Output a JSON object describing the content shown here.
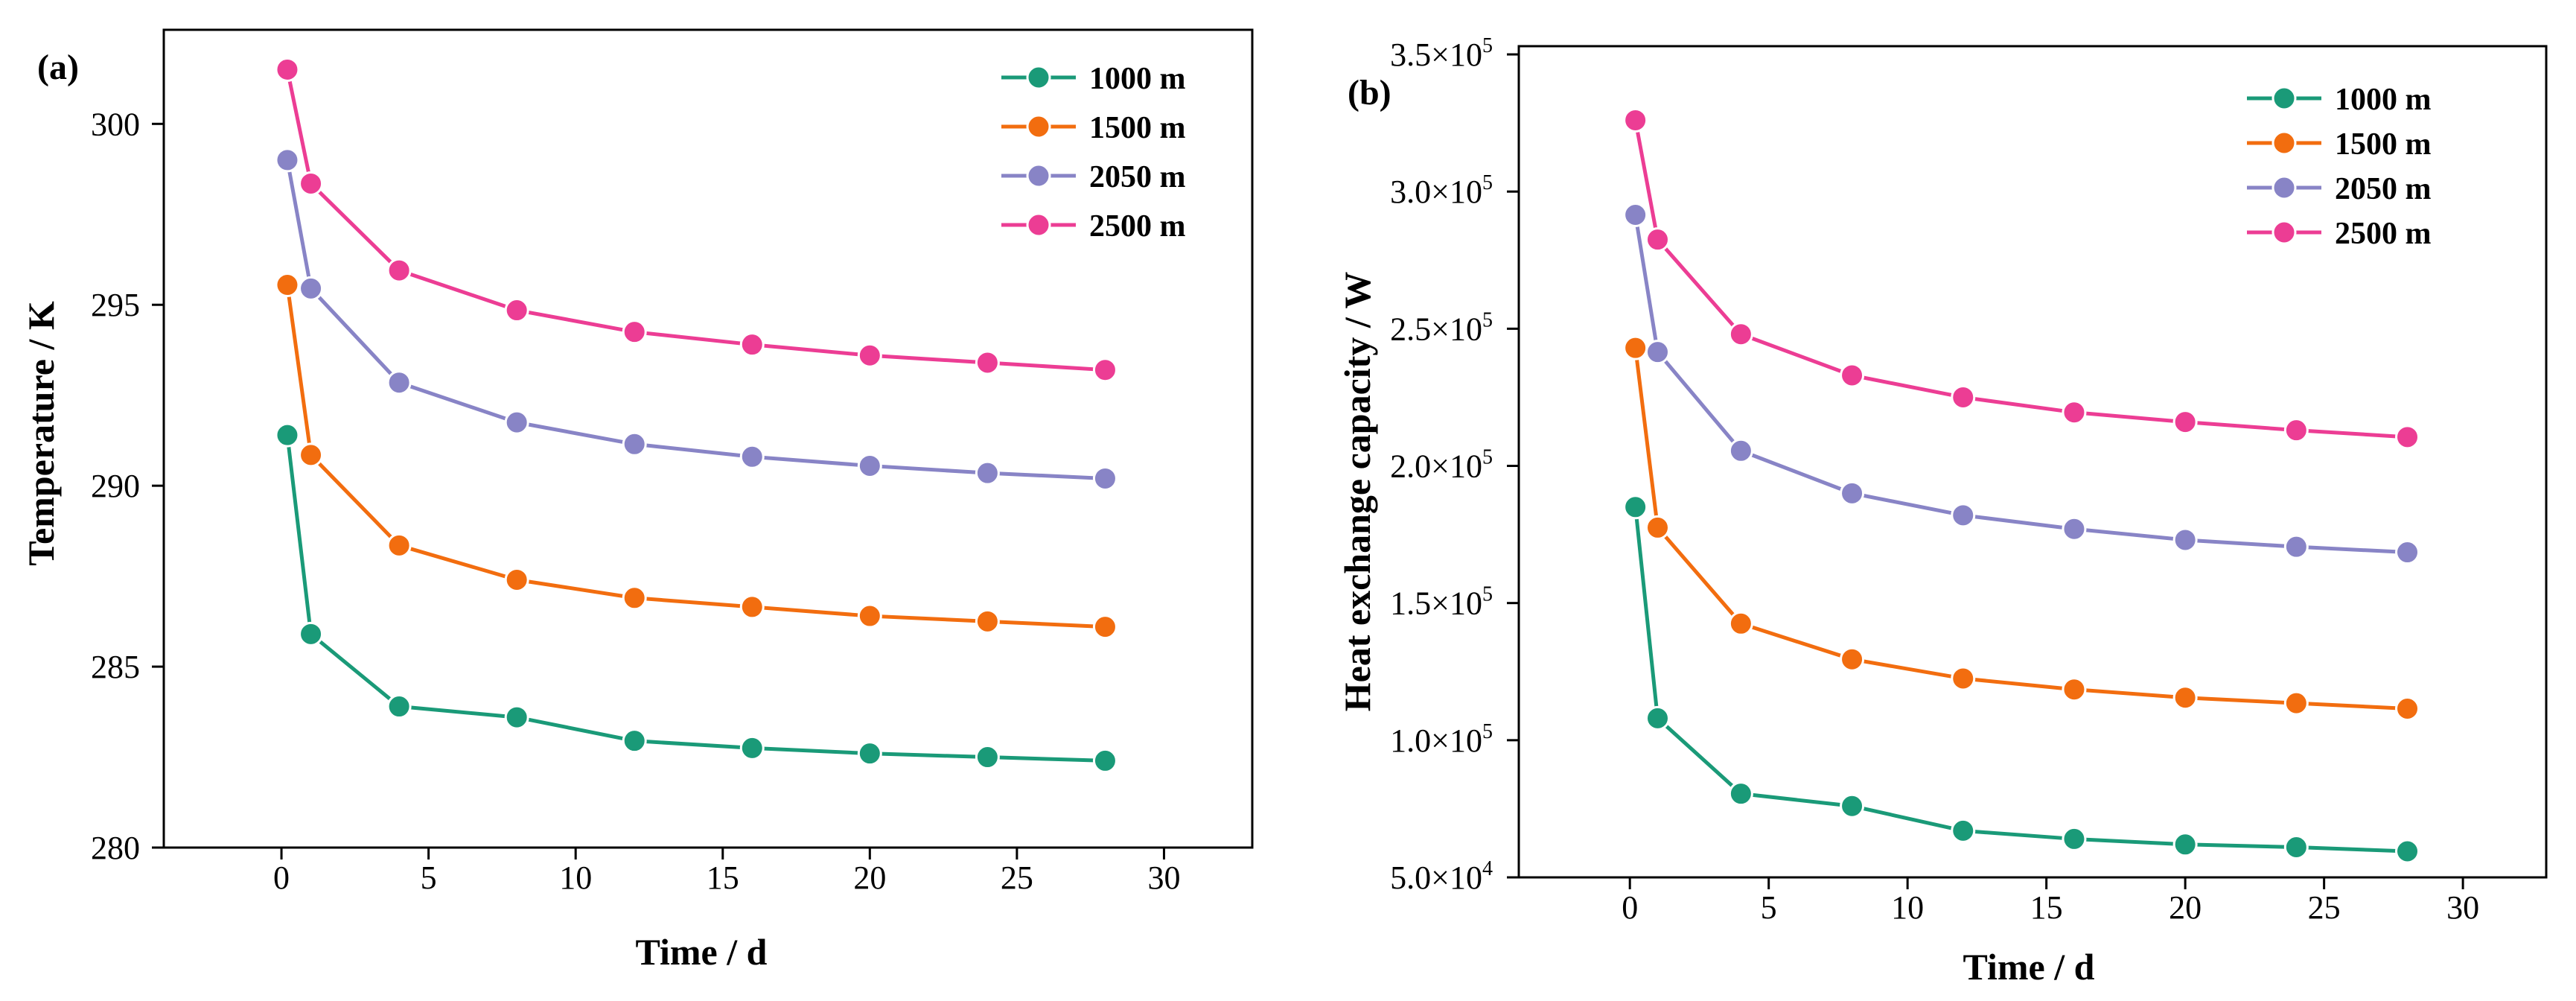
{
  "charts": [
    {
      "panel_label": "(a)",
      "x_title": "Time / d",
      "y_title": "Temperature / K",
      "x_ticks": [
        {
          "v": 0,
          "label": "0"
        },
        {
          "v": 5,
          "label": "5"
        },
        {
          "v": 10,
          "label": "10"
        },
        {
          "v": 15,
          "label": "15"
        },
        {
          "v": 20,
          "label": "20"
        },
        {
          "v": 25,
          "label": "25"
        },
        {
          "v": 30,
          "label": "30"
        }
      ],
      "y_ticks": [
        {
          "v": 280,
          "label": "280"
        },
        {
          "v": 285,
          "label": "285"
        },
        {
          "v": 290,
          "label": "290"
        },
        {
          "v": 295,
          "label": "295"
        },
        {
          "v": 300,
          "label": "300"
        }
      ]
    },
    {
      "panel_label": "(b)",
      "x_title": "Time / d",
      "y_title": "Heat exchange capacity / W",
      "x_ticks": [
        {
          "v": 0,
          "label": "0"
        },
        {
          "v": 5,
          "label": "5"
        },
        {
          "v": 10,
          "label": "10"
        },
        {
          "v": 15,
          "label": "15"
        },
        {
          "v": 20,
          "label": "20"
        },
        {
          "v": 25,
          "label": "25"
        },
        {
          "v": 30,
          "label": "30"
        }
      ],
      "y_ticks": [
        {
          "v": 50000,
          "mant": "5.0×10",
          "exp": "4"
        },
        {
          "v": 100000,
          "mant": "1.0×10",
          "exp": "5"
        },
        {
          "v": 150000,
          "mant": "1.5×10",
          "exp": "5"
        },
        {
          "v": 200000,
          "mant": "2.0×10",
          "exp": "5"
        },
        {
          "v": 250000,
          "mant": "2.5×10",
          "exp": "5"
        },
        {
          "v": 300000,
          "mant": "3.0×10",
          "exp": "5"
        },
        {
          "v": 350000,
          "mant": "3.5×10",
          "exp": "5"
        }
      ]
    }
  ],
  "chart_data": [
    {
      "type": "line",
      "title": "(a)",
      "xlabel": "Time / d",
      "ylabel": "Temperature / K",
      "xlim": [
        -4,
        33
      ],
      "ylim": [
        280,
        302.6
      ],
      "legend_position": "top-right",
      "x": [
        0.2,
        1,
        4,
        8,
        12,
        16,
        20,
        24,
        28
      ],
      "series": [
        {
          "name": "1000 m",
          "color": "#1a9a78",
          "values": [
            291.4,
            285.9,
            283.9,
            283.6,
            282.95,
            282.75,
            282.6,
            282.5,
            282.4
          ]
        },
        {
          "name": "1500 m",
          "color": "#f26d0f",
          "values": [
            295.55,
            290.85,
            288.35,
            287.4,
            286.9,
            286.65,
            286.4,
            286.25,
            286.1
          ]
        },
        {
          "name": "2050 m",
          "color": "#8884c6",
          "values": [
            299.0,
            295.45,
            292.85,
            291.75,
            291.15,
            290.8,
            290.55,
            290.35,
            290.2
          ]
        },
        {
          "name": "2500 m",
          "color": "#ec3d94",
          "values": [
            301.5,
            298.35,
            295.95,
            294.85,
            294.25,
            293.9,
            293.6,
            293.4,
            293.2
          ]
        }
      ]
    },
    {
      "type": "line",
      "title": "(b)",
      "xlabel": "Time / d",
      "ylabel": "Heat exchange capacity / W",
      "xlim": [
        -4,
        33
      ],
      "ylim": [
        50000,
        353000
      ],
      "legend_position": "top-right",
      "x": [
        0.2,
        1,
        4,
        8,
        12,
        16,
        20,
        24,
        28
      ],
      "series": [
        {
          "name": "1000 m",
          "color": "#1a9a78",
          "values": [
            185000,
            108000,
            80500,
            76000,
            67000,
            64000,
            62000,
            61000,
            59500
          ]
        },
        {
          "name": "1500 m",
          "color": "#f26d0f",
          "values": [
            243000,
            177500,
            142500,
            129500,
            122500,
            118500,
            115500,
            113500,
            111500
          ]
        },
        {
          "name": "2050 m",
          "color": "#8884c6",
          "values": [
            291500,
            241500,
            205500,
            190000,
            182000,
            177000,
            173000,
            170500,
            168500
          ]
        },
        {
          "name": "2500 m",
          "color": "#ec3d94",
          "values": [
            326000,
            282500,
            248000,
            233000,
            225000,
            219500,
            216000,
            213000,
            210500
          ]
        }
      ]
    }
  ]
}
